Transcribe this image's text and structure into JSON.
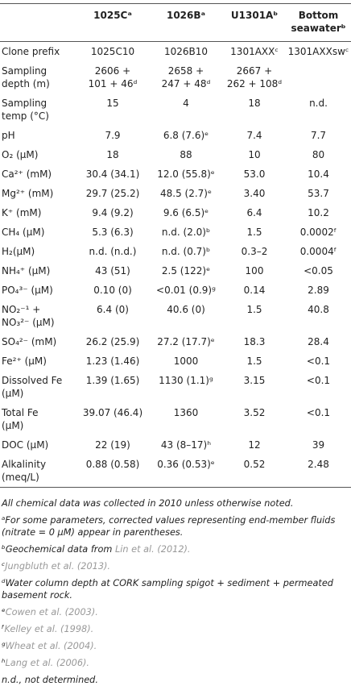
{
  "table": {
    "header": [
      "1025Cᵃ",
      "1026Bᵃ",
      "U1301Aᵇ",
      "Bottom\nseawaterᵇ"
    ],
    "rows": [
      [
        "Clone prefix",
        "1025C10",
        "1026B10",
        "1301AXXᶜ",
        "1301AXXswᶜ"
      ],
      [
        "Sampling\ndepth (m)",
        "2606 +\n101 + 46ᵈ",
        "2658 +\n247 + 48ᵈ",
        "2667 +\n262 + 108ᵈ",
        null
      ],
      [
        "Sampling\ntemp (°C)",
        "15",
        "4",
        "18",
        "n.d."
      ],
      [
        "pH",
        "7.9",
        "6.8 (7.6)ᵉ",
        "7.4",
        "7.7"
      ],
      [
        "O₂ (μM)",
        "18",
        "88",
        "10",
        "80"
      ],
      [
        "Ca²⁺ (mM)",
        "30.4 (34.1)",
        "12.0 (55.8)ᵉ",
        "53.0",
        "10.4"
      ],
      [
        "Mg²⁺ (mM)",
        "29.7 (25.2)",
        "48.5 (2.7)ᵉ",
        "3.40",
        "53.7"
      ],
      [
        "K⁺ (mM)",
        "9.4 (9.2)",
        "9.6 (6.5)ᵉ",
        "6.4",
        "10.2"
      ],
      [
        "CH₄ (μM)",
        "5.3 (6.3)",
        "n.d. (2.0)ᵇ",
        "1.5",
        "0.0002ᶠ"
      ],
      [
        "H₂(μM)",
        "n.d. (n.d.)",
        "n.d. (0.7)ᵇ",
        "0.3–2",
        "0.0004ᶠ"
      ],
      [
        "NH₄⁺ (μM)",
        "43 (51)",
        "2.5 (122)ᵉ",
        "100",
        "<0.05"
      ],
      [
        "PO₄³⁻ (μM)",
        "0.10 (0)",
        "<0.01 (0.9)ᵍ",
        "0.14",
        "2.89"
      ],
      [
        "NO₂⁻¹ +\nNO₃²⁻ (μM)",
        "6.4 (0)",
        "40.6 (0)",
        "1.5",
        "40.8"
      ],
      [
        "SO₄²⁻ (mM)",
        "26.2 (25.9)",
        "27.2 (17.7)ᵉ",
        "18.3",
        "28.4"
      ],
      [
        "Fe²⁺ (μM)",
        "1.23 (1.46)",
        "1000",
        "1.5",
        "<0.1"
      ],
      [
        "Dissolved Fe\n(μM)",
        "1.39 (1.65)",
        "1130 (1.1)ᵍ",
        "3.15",
        "<0.1"
      ],
      [
        "Total Fe\n(μM)",
        "39.07 (46.4)",
        "1360",
        "3.52",
        "<0.1"
      ],
      [
        "DOC (μM)",
        "22 (19)",
        "43 (8–17)ʰ",
        "12",
        "39"
      ],
      [
        "Alkalinity\n(meq/L)",
        "0.88 (0.58)",
        "0.36 (0.53)ᵉ",
        "0.52",
        "2.48"
      ]
    ]
  },
  "notes": [
    {
      "text": "All chemical data was collected in 2010 unless otherwise noted."
    },
    {
      "text": "ᵃFor some parameters, corrected values representing end-member fluids (nitrate = 0 μM) appear in parentheses."
    },
    {
      "text": "ᵇGeochemical data from",
      "ref": "Lin et al. (2012)."
    },
    {
      "text": "ᶜ",
      "ref": "Jungbluth et al. (2013)."
    },
    {
      "text": "ᵈWater column depth at CORK sampling spigot + sediment + permeated basement rock."
    },
    {
      "text": "ᵉ",
      "ref": "Cowen et al. (2003)."
    },
    {
      "text": "ᶠ",
      "ref": "Kelley et al. (1998)."
    },
    {
      "text": "ᵍ",
      "ref": "Wheat et al. (2004)."
    },
    {
      "text": "ʰ",
      "ref": "Lang et al. (2006)."
    },
    {
      "text": "n.d., not determined."
    }
  ]
}
